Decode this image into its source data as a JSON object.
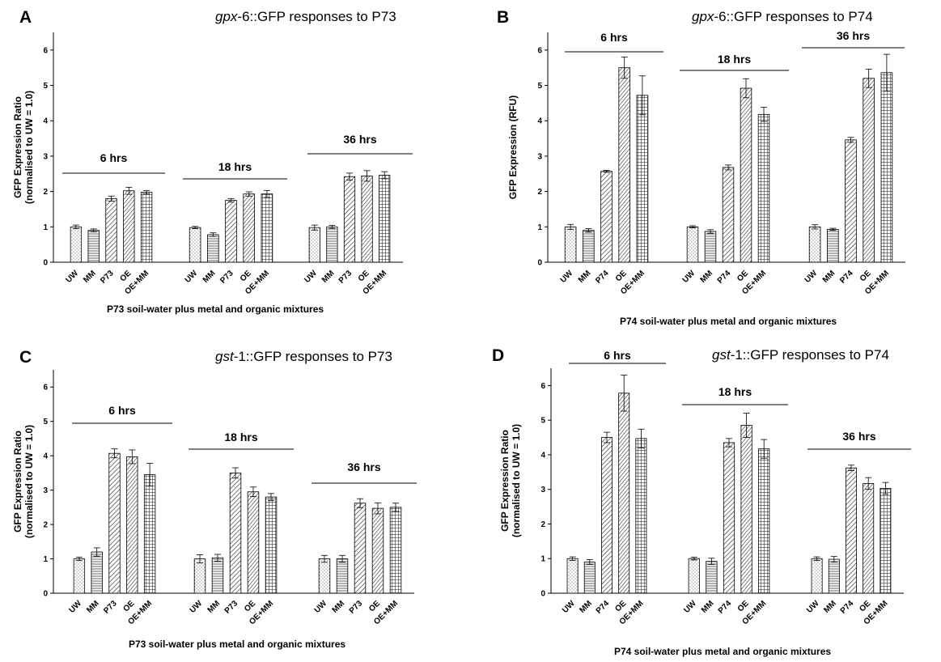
{
  "chart_data": [
    {
      "panel": "A",
      "type": "bar",
      "title_gene": "gpx",
      "title_rest": "-6::GFP responses to P73",
      "ylabel_line1": "GFP Expression Ratio",
      "ylabel_line2": "(normalised to UW = 1.0)",
      "xlabel": "P73 soil-water plus metal  and organic mixtures",
      "ylim": [
        0,
        6.5
      ],
      "yticks": [
        0,
        1,
        2,
        3,
        4,
        5,
        6
      ],
      "categories": [
        "UW",
        "MM",
        "P73",
        "OE",
        "OE+MM"
      ],
      "patterns": [
        "dots",
        "hlines",
        "diag",
        "diag2",
        "grid"
      ],
      "groups": [
        {
          "label": "6 hrs",
          "values": [
            1.0,
            0.9,
            1.8,
            2.02,
            1.98
          ],
          "errors": [
            0.05,
            0.04,
            0.07,
            0.1,
            0.05
          ]
        },
        {
          "label": "18 hrs",
          "values": [
            0.98,
            0.78,
            1.75,
            1.93,
            1.93
          ],
          "errors": [
            0.03,
            0.05,
            0.05,
            0.06,
            0.1
          ]
        },
        {
          "label": "36 hrs",
          "values": [
            0.98,
            1.0,
            2.42,
            2.44,
            2.46
          ],
          "errors": [
            0.07,
            0.04,
            0.1,
            0.15,
            0.1
          ]
        }
      ]
    },
    {
      "panel": "B",
      "type": "bar",
      "title_gene": "gpx",
      "title_rest": "-6::GFP responses to P74",
      "ylabel_line1": "GFP Expression (RFU)",
      "ylabel_line2": "",
      "xlabel": "P74 soil-water plus metal and organic mixtures",
      "ylim": [
        0,
        6.5
      ],
      "yticks": [
        0,
        1,
        2,
        3,
        4,
        5,
        6
      ],
      "categories": [
        "UW",
        "MM",
        "P74",
        "OE",
        "OE+MM"
      ],
      "patterns": [
        "dots",
        "hlines",
        "diag",
        "diag2",
        "grid"
      ],
      "groups": [
        {
          "label": "6 hrs",
          "values": [
            1.0,
            0.9,
            2.57,
            5.5,
            4.72
          ],
          "errors": [
            0.07,
            0.05,
            0.03,
            0.3,
            0.55
          ]
        },
        {
          "label": "18 hrs",
          "values": [
            1.0,
            0.87,
            2.68,
            4.92,
            4.18
          ],
          "errors": [
            0.03,
            0.05,
            0.07,
            0.27,
            0.2
          ]
        },
        {
          "label": "36 hrs",
          "values": [
            1.0,
            0.93,
            3.46,
            5.2,
            5.36
          ],
          "errors": [
            0.06,
            0.03,
            0.07,
            0.26,
            0.52
          ]
        }
      ]
    },
    {
      "panel": "C",
      "type": "bar",
      "title_gene": "gst",
      "title_rest": "-1::GFP responses to P73",
      "ylabel_line1": "GFP Expression Ratio",
      "ylabel_line2": "(normalised to UW = 1.0)",
      "xlabel": "P73 soil-water plus metal  and organic mixtures",
      "ylim": [
        0,
        6.5
      ],
      "yticks": [
        0,
        1,
        2,
        3,
        4,
        5,
        6
      ],
      "categories": [
        "UW",
        "MM",
        "P73",
        "OE",
        "OE+MM"
      ],
      "patterns": [
        "dots",
        "hlines",
        "diag",
        "diag2",
        "grid"
      ],
      "groups": [
        {
          "label": "6 hrs",
          "values": [
            1.0,
            1.2,
            4.07,
            3.97,
            3.45
          ],
          "errors": [
            0.05,
            0.12,
            0.13,
            0.2,
            0.33
          ]
        },
        {
          "label": "18 hrs",
          "values": [
            1.0,
            1.03,
            3.5,
            2.95,
            2.8
          ],
          "errors": [
            0.12,
            0.1,
            0.15,
            0.14,
            0.1
          ]
        },
        {
          "label": "36 hrs",
          "values": [
            1.0,
            1.0,
            2.62,
            2.47,
            2.5
          ],
          "errors": [
            0.1,
            0.1,
            0.13,
            0.16,
            0.12
          ]
        }
      ]
    },
    {
      "panel": "D",
      "type": "bar",
      "title_gene": "gst",
      "title_rest": "-1::GFP responses to P74",
      "ylabel_line1": "GFP Expression Ratio",
      "ylabel_line2": "(normalised to UW = 1.0)",
      "xlabel": "P74 soil-water plus metal and organic mixtures",
      "ylim": [
        0,
        6.5
      ],
      "yticks": [
        0,
        1,
        2,
        3,
        4,
        5,
        6
      ],
      "categories": [
        "UW",
        "MM",
        "P74",
        "OE",
        "OE+MM"
      ],
      "patterns": [
        "dots",
        "hlines",
        "diag",
        "diag2",
        "grid"
      ],
      "groups": [
        {
          "label": "6 hrs",
          "values": [
            1.0,
            0.9,
            4.5,
            5.78,
            4.47
          ],
          "errors": [
            0.05,
            0.07,
            0.15,
            0.52,
            0.27
          ]
        },
        {
          "label": "18 hrs",
          "values": [
            1.0,
            0.92,
            4.35,
            4.85,
            4.17
          ],
          "errors": [
            0.04,
            0.09,
            0.12,
            0.35,
            0.27
          ]
        },
        {
          "label": "36 hrs",
          "values": [
            1.0,
            0.98,
            3.62,
            3.17,
            3.03
          ],
          "errors": [
            0.05,
            0.08,
            0.08,
            0.17,
            0.17
          ]
        }
      ]
    }
  ]
}
